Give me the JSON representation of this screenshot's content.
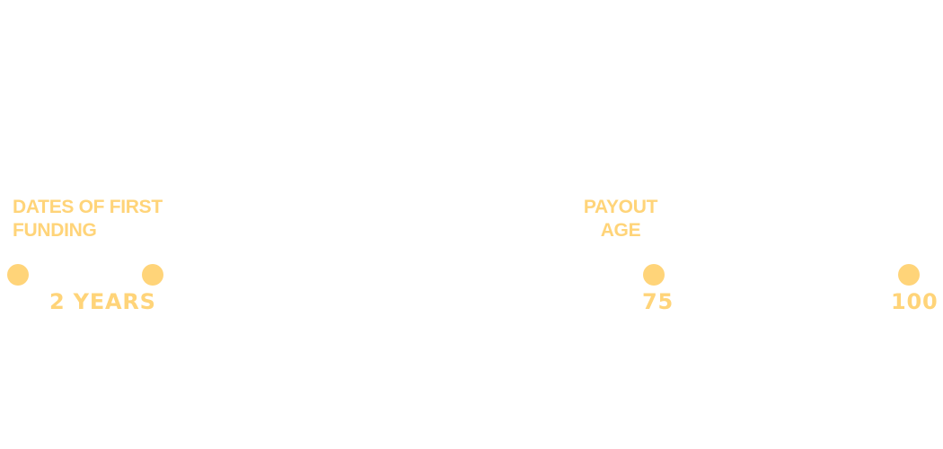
{
  "colors": {
    "accent": "#FFD479",
    "background": "#FFFFFF"
  },
  "labels": {
    "first_funding": [
      "DATES OF FIRST",
      "FUNDING"
    ],
    "payout_age": [
      "PAYOUT",
      "AGE"
    ]
  },
  "values": {
    "two_years": "2 YEARS",
    "age_75": "75",
    "age_100": "100"
  }
}
